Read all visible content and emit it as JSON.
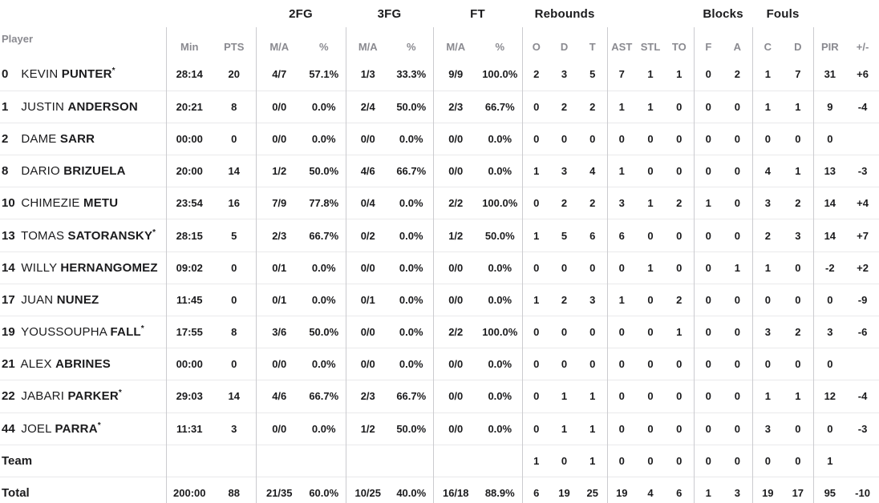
{
  "colors": {
    "text_dark": "#1b1b1d",
    "text_gray": "#8a8a90",
    "line_vertical": "#cbcbcf",
    "line_horizontal": "#e9e9eb",
    "background": "#ffffff"
  },
  "header": {
    "player_label": "Player",
    "starter_mark": "*",
    "groups": [
      {
        "key": "spacer-left",
        "label": "",
        "span": 3
      },
      {
        "key": "2fg",
        "label": "2FG",
        "span": 2
      },
      {
        "key": "3fg",
        "label": "3FG",
        "span": 2
      },
      {
        "key": "ft",
        "label": "FT",
        "span": 2
      },
      {
        "key": "rebounds",
        "label": "Rebounds",
        "span": 3
      },
      {
        "key": "spacer-mid",
        "label": "",
        "span": 3
      },
      {
        "key": "blocks",
        "label": "Blocks",
        "span": 2
      },
      {
        "key": "fouls",
        "label": "Fouls",
        "span": 2
      },
      {
        "key": "spacer-right",
        "label": "",
        "span": 2
      }
    ],
    "sub_columns": [
      "Min",
      "PTS",
      "M/A",
      "%",
      "M/A",
      "%",
      "M/A",
      "%",
      "O",
      "D",
      "T",
      "AST",
      "STL",
      "TO",
      "F",
      "A",
      "C",
      "D",
      "PIR",
      "+/-"
    ]
  },
  "rows": [
    {
      "type": "player",
      "number": "0",
      "first": "KEVIN",
      "last": "PUNTER",
      "starter": true,
      "stats": [
        "28:14",
        "20",
        "4/7",
        "57.1%",
        "1/3",
        "33.3%",
        "9/9",
        "100.0%",
        "2",
        "3",
        "5",
        "7",
        "1",
        "1",
        "0",
        "2",
        "1",
        "7",
        "31",
        "+6"
      ]
    },
    {
      "type": "player",
      "number": "1",
      "first": "JUSTIN",
      "last": "ANDERSON",
      "starter": false,
      "stats": [
        "20:21",
        "8",
        "0/0",
        "0.0%",
        "2/4",
        "50.0%",
        "2/3",
        "66.7%",
        "0",
        "2",
        "2",
        "1",
        "1",
        "0",
        "0",
        "0",
        "1",
        "1",
        "9",
        "-4"
      ]
    },
    {
      "type": "player",
      "number": "2",
      "first": "DAME",
      "last": "SARR",
      "starter": false,
      "stats": [
        "00:00",
        "0",
        "0/0",
        "0.0%",
        "0/0",
        "0.0%",
        "0/0",
        "0.0%",
        "0",
        "0",
        "0",
        "0",
        "0",
        "0",
        "0",
        "0",
        "0",
        "0",
        "0",
        ""
      ]
    },
    {
      "type": "player",
      "number": "8",
      "first": "DARIO",
      "last": "BRIZUELA",
      "starter": false,
      "stats": [
        "20:00",
        "14",
        "1/2",
        "50.0%",
        "4/6",
        "66.7%",
        "0/0",
        "0.0%",
        "1",
        "3",
        "4",
        "1",
        "0",
        "0",
        "0",
        "0",
        "4",
        "1",
        "13",
        "-3"
      ]
    },
    {
      "type": "player",
      "number": "10",
      "first": "CHIMEZIE",
      "last": "METU",
      "starter": false,
      "stats": [
        "23:54",
        "16",
        "7/9",
        "77.8%",
        "0/4",
        "0.0%",
        "2/2",
        "100.0%",
        "0",
        "2",
        "2",
        "3",
        "1",
        "2",
        "1",
        "0",
        "3",
        "2",
        "14",
        "+4"
      ]
    },
    {
      "type": "player",
      "number": "13",
      "first": "TOMAS",
      "last": "SATORANSKY",
      "starter": true,
      "stats": [
        "28:15",
        "5",
        "2/3",
        "66.7%",
        "0/2",
        "0.0%",
        "1/2",
        "50.0%",
        "1",
        "5",
        "6",
        "6",
        "0",
        "0",
        "0",
        "0",
        "2",
        "3",
        "14",
        "+7"
      ]
    },
    {
      "type": "player",
      "number": "14",
      "first": "WILLY",
      "last": "HERNANGOMEZ",
      "starter": false,
      "stats": [
        "09:02",
        "0",
        "0/1",
        "0.0%",
        "0/0",
        "0.0%",
        "0/0",
        "0.0%",
        "0",
        "0",
        "0",
        "0",
        "1",
        "0",
        "0",
        "1",
        "1",
        "0",
        "-2",
        "+2"
      ]
    },
    {
      "type": "player",
      "number": "17",
      "first": "JUAN",
      "last": "NUNEZ",
      "starter": false,
      "stats": [
        "11:45",
        "0",
        "0/1",
        "0.0%",
        "0/1",
        "0.0%",
        "0/0",
        "0.0%",
        "1",
        "2",
        "3",
        "1",
        "0",
        "2",
        "0",
        "0",
        "0",
        "0",
        "0",
        "-9"
      ]
    },
    {
      "type": "player",
      "number": "19",
      "first": "YOUSSOUPHA",
      "last": "FALL",
      "starter": true,
      "stats": [
        "17:55",
        "8",
        "3/6",
        "50.0%",
        "0/0",
        "0.0%",
        "2/2",
        "100.0%",
        "0",
        "0",
        "0",
        "0",
        "0",
        "1",
        "0",
        "0",
        "3",
        "2",
        "3",
        "-6"
      ]
    },
    {
      "type": "player",
      "number": "21",
      "first": "ALEX",
      "last": "ABRINES",
      "starter": false,
      "stats": [
        "00:00",
        "0",
        "0/0",
        "0.0%",
        "0/0",
        "0.0%",
        "0/0",
        "0.0%",
        "0",
        "0",
        "0",
        "0",
        "0",
        "0",
        "0",
        "0",
        "0",
        "0",
        "0",
        ""
      ]
    },
    {
      "type": "player",
      "number": "22",
      "first": "JABARI",
      "last": "PARKER",
      "starter": true,
      "stats": [
        "29:03",
        "14",
        "4/6",
        "66.7%",
        "2/3",
        "66.7%",
        "0/0",
        "0.0%",
        "0",
        "1",
        "1",
        "0",
        "0",
        "0",
        "0",
        "0",
        "1",
        "1",
        "12",
        "-4"
      ]
    },
    {
      "type": "player",
      "number": "44",
      "first": "JOEL",
      "last": "PARRA",
      "starter": true,
      "stats": [
        "11:31",
        "3",
        "0/0",
        "0.0%",
        "1/2",
        "50.0%",
        "0/0",
        "0.0%",
        "0",
        "1",
        "1",
        "0",
        "0",
        "0",
        "0",
        "0",
        "3",
        "0",
        "0",
        "-3"
      ]
    },
    {
      "type": "team",
      "label": "Team",
      "stats": [
        "",
        "",
        "",
        "",
        "",
        "",
        "",
        "",
        "1",
        "0",
        "1",
        "0",
        "0",
        "0",
        "0",
        "0",
        "0",
        "0",
        "1",
        ""
      ]
    },
    {
      "type": "total",
      "label": "Total",
      "stats": [
        "200:00",
        "88",
        "21/35",
        "60.0%",
        "10/25",
        "40.0%",
        "16/18",
        "88.9%",
        "6",
        "19",
        "25",
        "19",
        "4",
        "6",
        "1",
        "3",
        "19",
        "17",
        "95",
        "-10"
      ]
    }
  ]
}
